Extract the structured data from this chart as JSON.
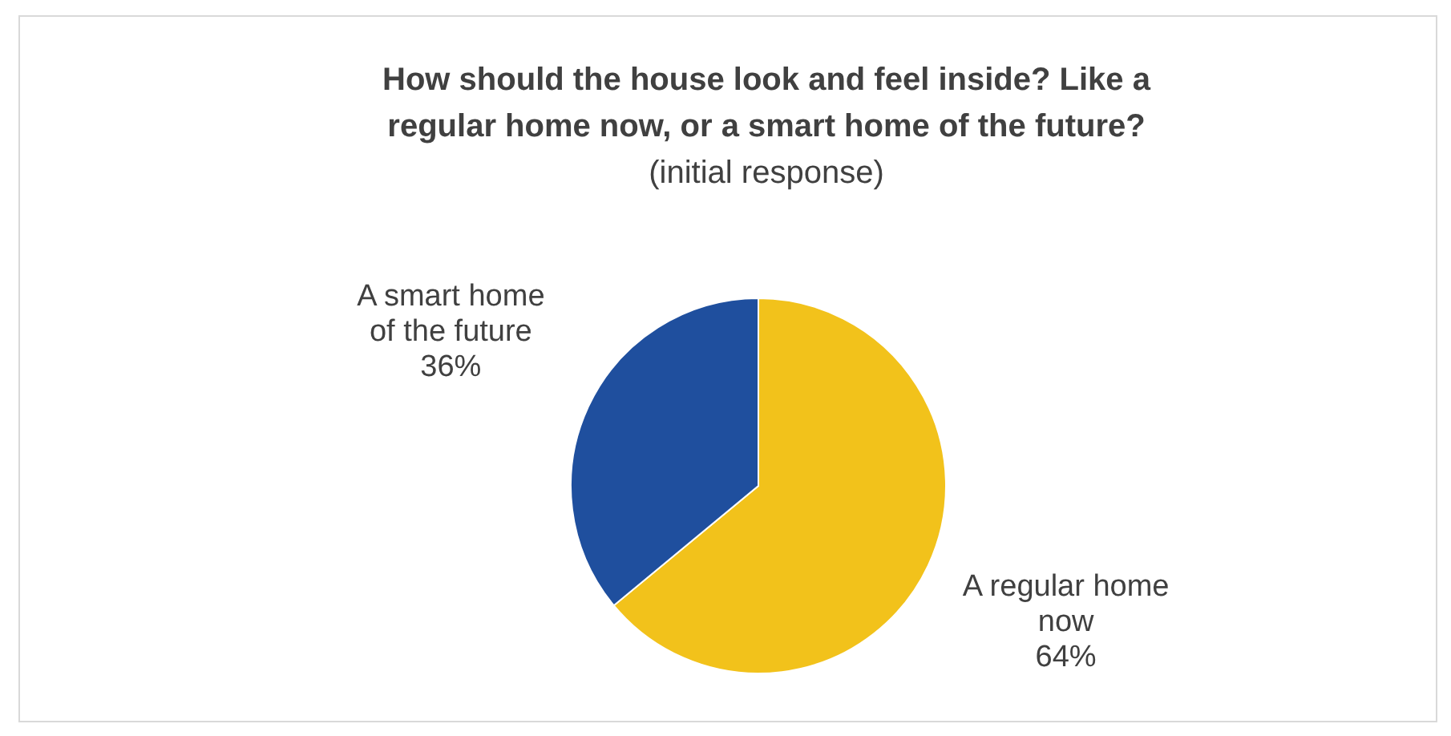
{
  "chart_data": {
    "type": "pie",
    "title": "How should the house look and feel inside? Like a regular home now, or a smart home of the future?",
    "subtitle": "(initial response)",
    "categories": [
      "A regular home now",
      "A smart home of the future"
    ],
    "values": [
      64,
      36
    ],
    "colors": [
      "#f2c21b",
      "#1f4f9e"
    ],
    "value_labels": [
      "64%",
      "36%"
    ]
  }
}
